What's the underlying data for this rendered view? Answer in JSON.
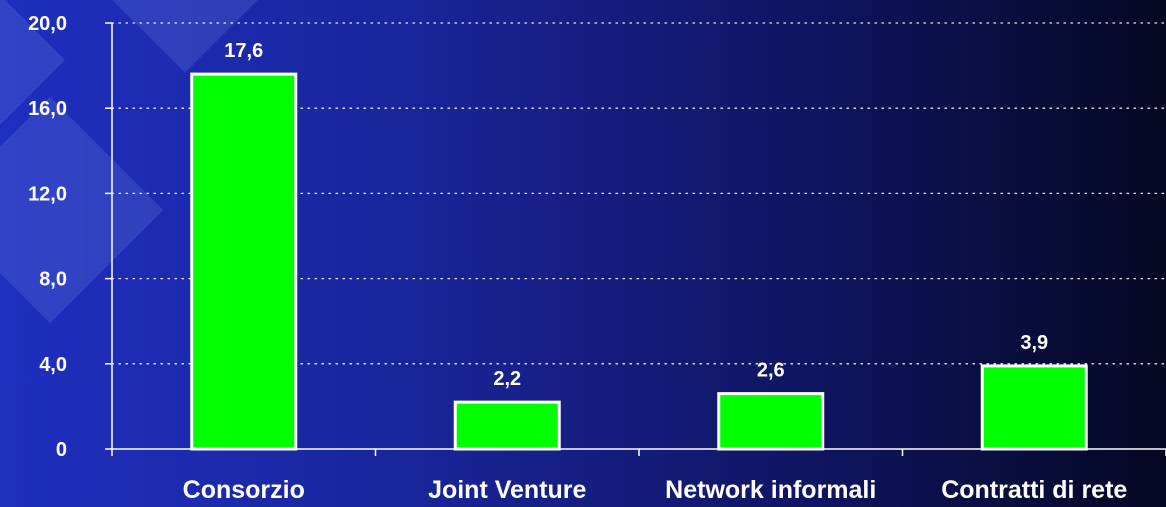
{
  "colors": {
    "bar_fill": "#00ff00",
    "bar_stroke": "#ffffff",
    "text": "#ffffff",
    "grid": "#ffffff"
  },
  "chart_data": {
    "type": "bar",
    "categories": [
      "Consorzio",
      "Joint Venture",
      "Network informali",
      "Contratti di rete"
    ],
    "values": [
      17.6,
      2.2,
      2.6,
      3.9
    ],
    "value_labels": [
      "17,6",
      "2,2",
      "2,6",
      "3,9"
    ],
    "y_ticks": [
      0,
      4,
      8,
      12,
      16,
      20
    ],
    "y_tick_labels": [
      "0",
      "4,0",
      "8,0",
      "12,0",
      "16,0",
      "20,0"
    ],
    "ylim": [
      0,
      20
    ],
    "title": "",
    "xlabel": "",
    "ylabel": "",
    "grid": true,
    "legend": "none"
  }
}
